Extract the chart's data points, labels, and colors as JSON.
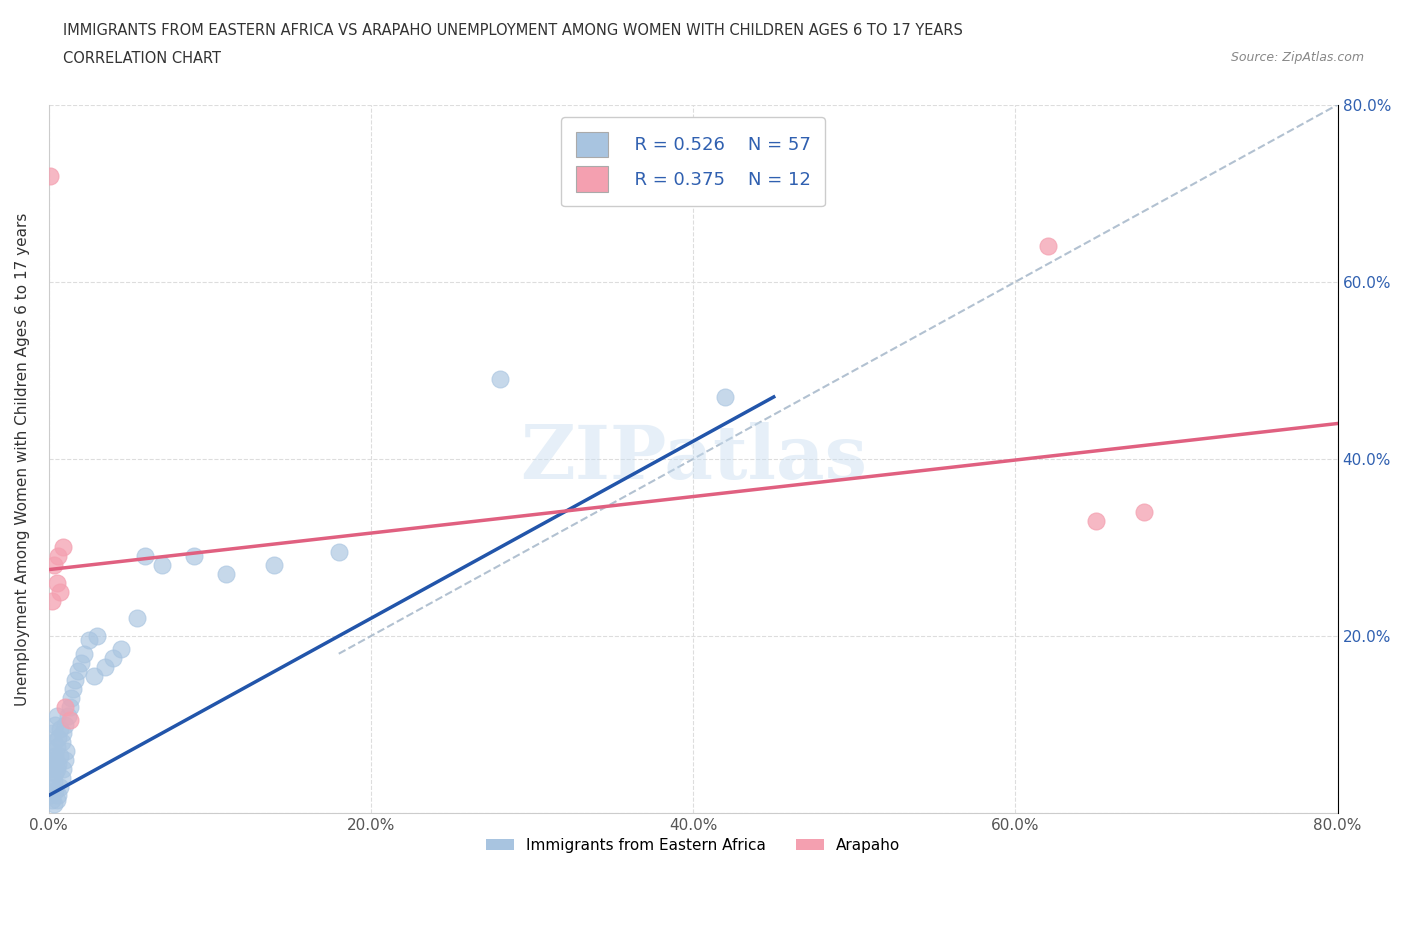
{
  "title_line1": "IMMIGRANTS FROM EASTERN AFRICA VS ARAPAHO UNEMPLOYMENT AMONG WOMEN WITH CHILDREN AGES 6 TO 17 YEARS",
  "title_line2": "CORRELATION CHART",
  "source_text": "Source: ZipAtlas.com",
  "ylabel": "Unemployment Among Women with Children Ages 6 to 17 years",
  "watermark": "ZIPatlas",
  "legend_R1": "R = 0.526",
  "legend_N1": "N = 57",
  "legend_R2": "R = 0.375",
  "legend_N2": "N = 12",
  "series1_label": "Immigrants from Eastern Africa",
  "series2_label": "Arapaho",
  "series1_color": "#a8c4e0",
  "series2_color": "#f4a0b0",
  "trendline1_color": "#2255aa",
  "trendline2_color": "#e06080",
  "dashed_line_color": "#aabbcc",
  "xlim": [
    0,
    0.8
  ],
  "ylim": [
    0,
    0.8
  ],
  "xticks": [
    0.0,
    0.2,
    0.4,
    0.6,
    0.8
  ],
  "yticks": [
    0.0,
    0.2,
    0.4,
    0.6,
    0.8
  ],
  "xticklabels": [
    "0.0%",
    "20.0%",
    "40.0%",
    "60.0%",
    "80.0%"
  ],
  "left_yticklabels": [
    "",
    "",
    "",
    "",
    ""
  ],
  "right_yticklabels": [
    "",
    "20.0%",
    "40.0%",
    "60.0%",
    "80.0%"
  ],
  "series1_x": [
    0.001,
    0.001,
    0.001,
    0.001,
    0.002,
    0.002,
    0.002,
    0.002,
    0.002,
    0.003,
    0.003,
    0.003,
    0.003,
    0.004,
    0.004,
    0.004,
    0.004,
    0.005,
    0.005,
    0.005,
    0.005,
    0.006,
    0.006,
    0.006,
    0.007,
    0.007,
    0.007,
    0.008,
    0.008,
    0.009,
    0.009,
    0.01,
    0.01,
    0.011,
    0.012,
    0.013,
    0.014,
    0.015,
    0.016,
    0.018,
    0.02,
    0.022,
    0.025,
    0.028,
    0.03,
    0.035,
    0.04,
    0.045,
    0.055,
    0.06,
    0.07,
    0.09,
    0.11,
    0.14,
    0.18,
    0.28,
    0.42
  ],
  "series1_y": [
    0.02,
    0.03,
    0.05,
    0.06,
    0.015,
    0.04,
    0.055,
    0.07,
    0.09,
    0.01,
    0.035,
    0.06,
    0.08,
    0.025,
    0.045,
    0.065,
    0.1,
    0.015,
    0.05,
    0.075,
    0.11,
    0.02,
    0.055,
    0.085,
    0.03,
    0.065,
    0.095,
    0.04,
    0.08,
    0.05,
    0.09,
    0.06,
    0.1,
    0.07,
    0.11,
    0.12,
    0.13,
    0.14,
    0.15,
    0.16,
    0.17,
    0.18,
    0.195,
    0.155,
    0.2,
    0.165,
    0.175,
    0.185,
    0.22,
    0.29,
    0.28,
    0.29,
    0.27,
    0.28,
    0.295,
    0.49,
    0.47
  ],
  "series2_x": [
    0.001,
    0.002,
    0.003,
    0.005,
    0.006,
    0.007,
    0.009,
    0.01,
    0.013,
    0.62,
    0.65,
    0.68
  ],
  "series2_y": [
    0.72,
    0.24,
    0.28,
    0.26,
    0.29,
    0.25,
    0.3,
    0.12,
    0.105,
    0.64,
    0.33,
    0.34
  ],
  "trendline1_x": [
    0.0,
    0.45
  ],
  "trendline1_y": [
    0.02,
    0.47
  ],
  "trendline2_x": [
    0.0,
    0.8
  ],
  "trendline2_y": [
    0.275,
    0.44
  ],
  "dashed_line_x": [
    0.18,
    0.8
  ],
  "dashed_line_y": [
    0.18,
    0.8
  ],
  "background_color": "#ffffff",
  "grid_color": "#dddddd"
}
